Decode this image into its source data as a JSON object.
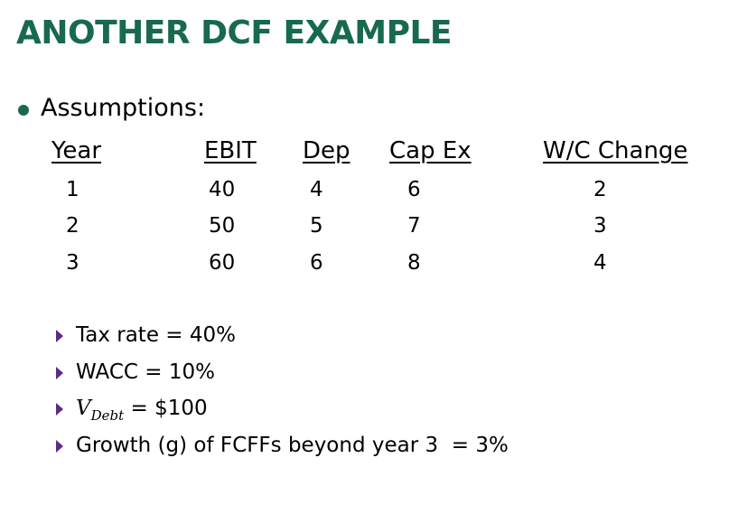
{
  "title": "ANOTHER DCF EXAMPLE",
  "bullet": "Assumptions:",
  "table": {
    "headers": [
      "Year",
      "EBIT",
      "Dep",
      "Cap Ex",
      "W/C Change"
    ],
    "rows": [
      [
        1,
        40,
        4,
        6,
        2
      ],
      [
        2,
        50,
        5,
        7,
        3
      ],
      [
        3,
        60,
        6,
        8,
        4
      ]
    ]
  },
  "sub_bullets": [
    {
      "text": "Tax rate = 40%"
    },
    {
      "text": "WACC = 10%"
    },
    {
      "symbol": "V",
      "subscript": "Debt",
      "text": " = $100"
    },
    {
      "text": "Growth (g) of FCFFs beyond year 3  = 3%"
    }
  ]
}
